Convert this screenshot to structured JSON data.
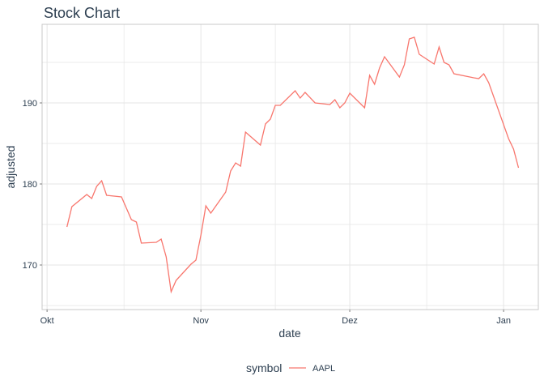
{
  "chart_data": {
    "type": "line",
    "title": "Stock Chart",
    "xlabel": "date",
    "ylabel": "adjusted",
    "x_ticks": [
      {
        "date": "2023-10-01",
        "label": "Okt"
      },
      {
        "date": "2023-11-01",
        "label": "Nov"
      },
      {
        "date": "2023-12-01",
        "label": "Dez"
      },
      {
        "date": "2024-01-01",
        "label": "Jan"
      }
    ],
    "xlim": [
      "2023-09-30",
      "2024-01-08"
    ],
    "y_ticks": [
      170,
      180,
      190
    ],
    "ylim": [
      164.5,
      199.7
    ],
    "grid": true,
    "legend": {
      "title": "symbol",
      "position": "bottom"
    },
    "colors": {
      "line": "#f8766d",
      "text": "#2c3e50",
      "grid": "#e5e5e5",
      "panel_border": "#c8c8c8"
    },
    "series": [
      {
        "name": "AAPL",
        "x": [
          "2023-10-05",
          "2023-10-06",
          "2023-10-09",
          "2023-10-10",
          "2023-10-11",
          "2023-10-12",
          "2023-10-13",
          "2023-10-16",
          "2023-10-17",
          "2023-10-18",
          "2023-10-19",
          "2023-10-20",
          "2023-10-23",
          "2023-10-24",
          "2023-10-25",
          "2023-10-26",
          "2023-10-27",
          "2023-10-30",
          "2023-10-31",
          "2023-11-01",
          "2023-11-02",
          "2023-11-03",
          "2023-11-06",
          "2023-11-07",
          "2023-11-08",
          "2023-11-09",
          "2023-11-10",
          "2023-11-13",
          "2023-11-14",
          "2023-11-15",
          "2023-11-16",
          "2023-11-17",
          "2023-11-20",
          "2023-11-21",
          "2023-11-22",
          "2023-11-24",
          "2023-11-27",
          "2023-11-28",
          "2023-11-29",
          "2023-11-30",
          "2023-12-01",
          "2023-12-04",
          "2023-12-05",
          "2023-12-06",
          "2023-12-07",
          "2023-12-08",
          "2023-12-11",
          "2023-12-12",
          "2023-12-13",
          "2023-12-14",
          "2023-12-15",
          "2023-12-18",
          "2023-12-19",
          "2023-12-20",
          "2023-12-21",
          "2023-12-22",
          "2023-12-26",
          "2023-12-27",
          "2023-12-28",
          "2023-12-29",
          "2024-01-02",
          "2024-01-03",
          "2024-01-04"
        ],
        "values": [
          174.7,
          177.2,
          178.7,
          178.2,
          179.7,
          180.4,
          178.6,
          178.4,
          177.0,
          175.6,
          175.3,
          172.7,
          172.8,
          173.2,
          171.0,
          166.7,
          168.1,
          170.1,
          170.6,
          173.7,
          177.3,
          176.4,
          179.0,
          181.6,
          182.6,
          182.2,
          186.4,
          184.8,
          187.4,
          188.0,
          189.7,
          189.7,
          191.5,
          190.6,
          191.3,
          190.0,
          189.8,
          190.4,
          189.4,
          190.0,
          191.2,
          189.4,
          193.4,
          192.3,
          194.3,
          195.7,
          193.2,
          194.7,
          197.9,
          198.1,
          196.0,
          194.8,
          196.9,
          195.0,
          194.7,
          193.6,
          193.1,
          193.0,
          193.6,
          192.5,
          185.6,
          184.3,
          182.0
        ]
      }
    ]
  }
}
